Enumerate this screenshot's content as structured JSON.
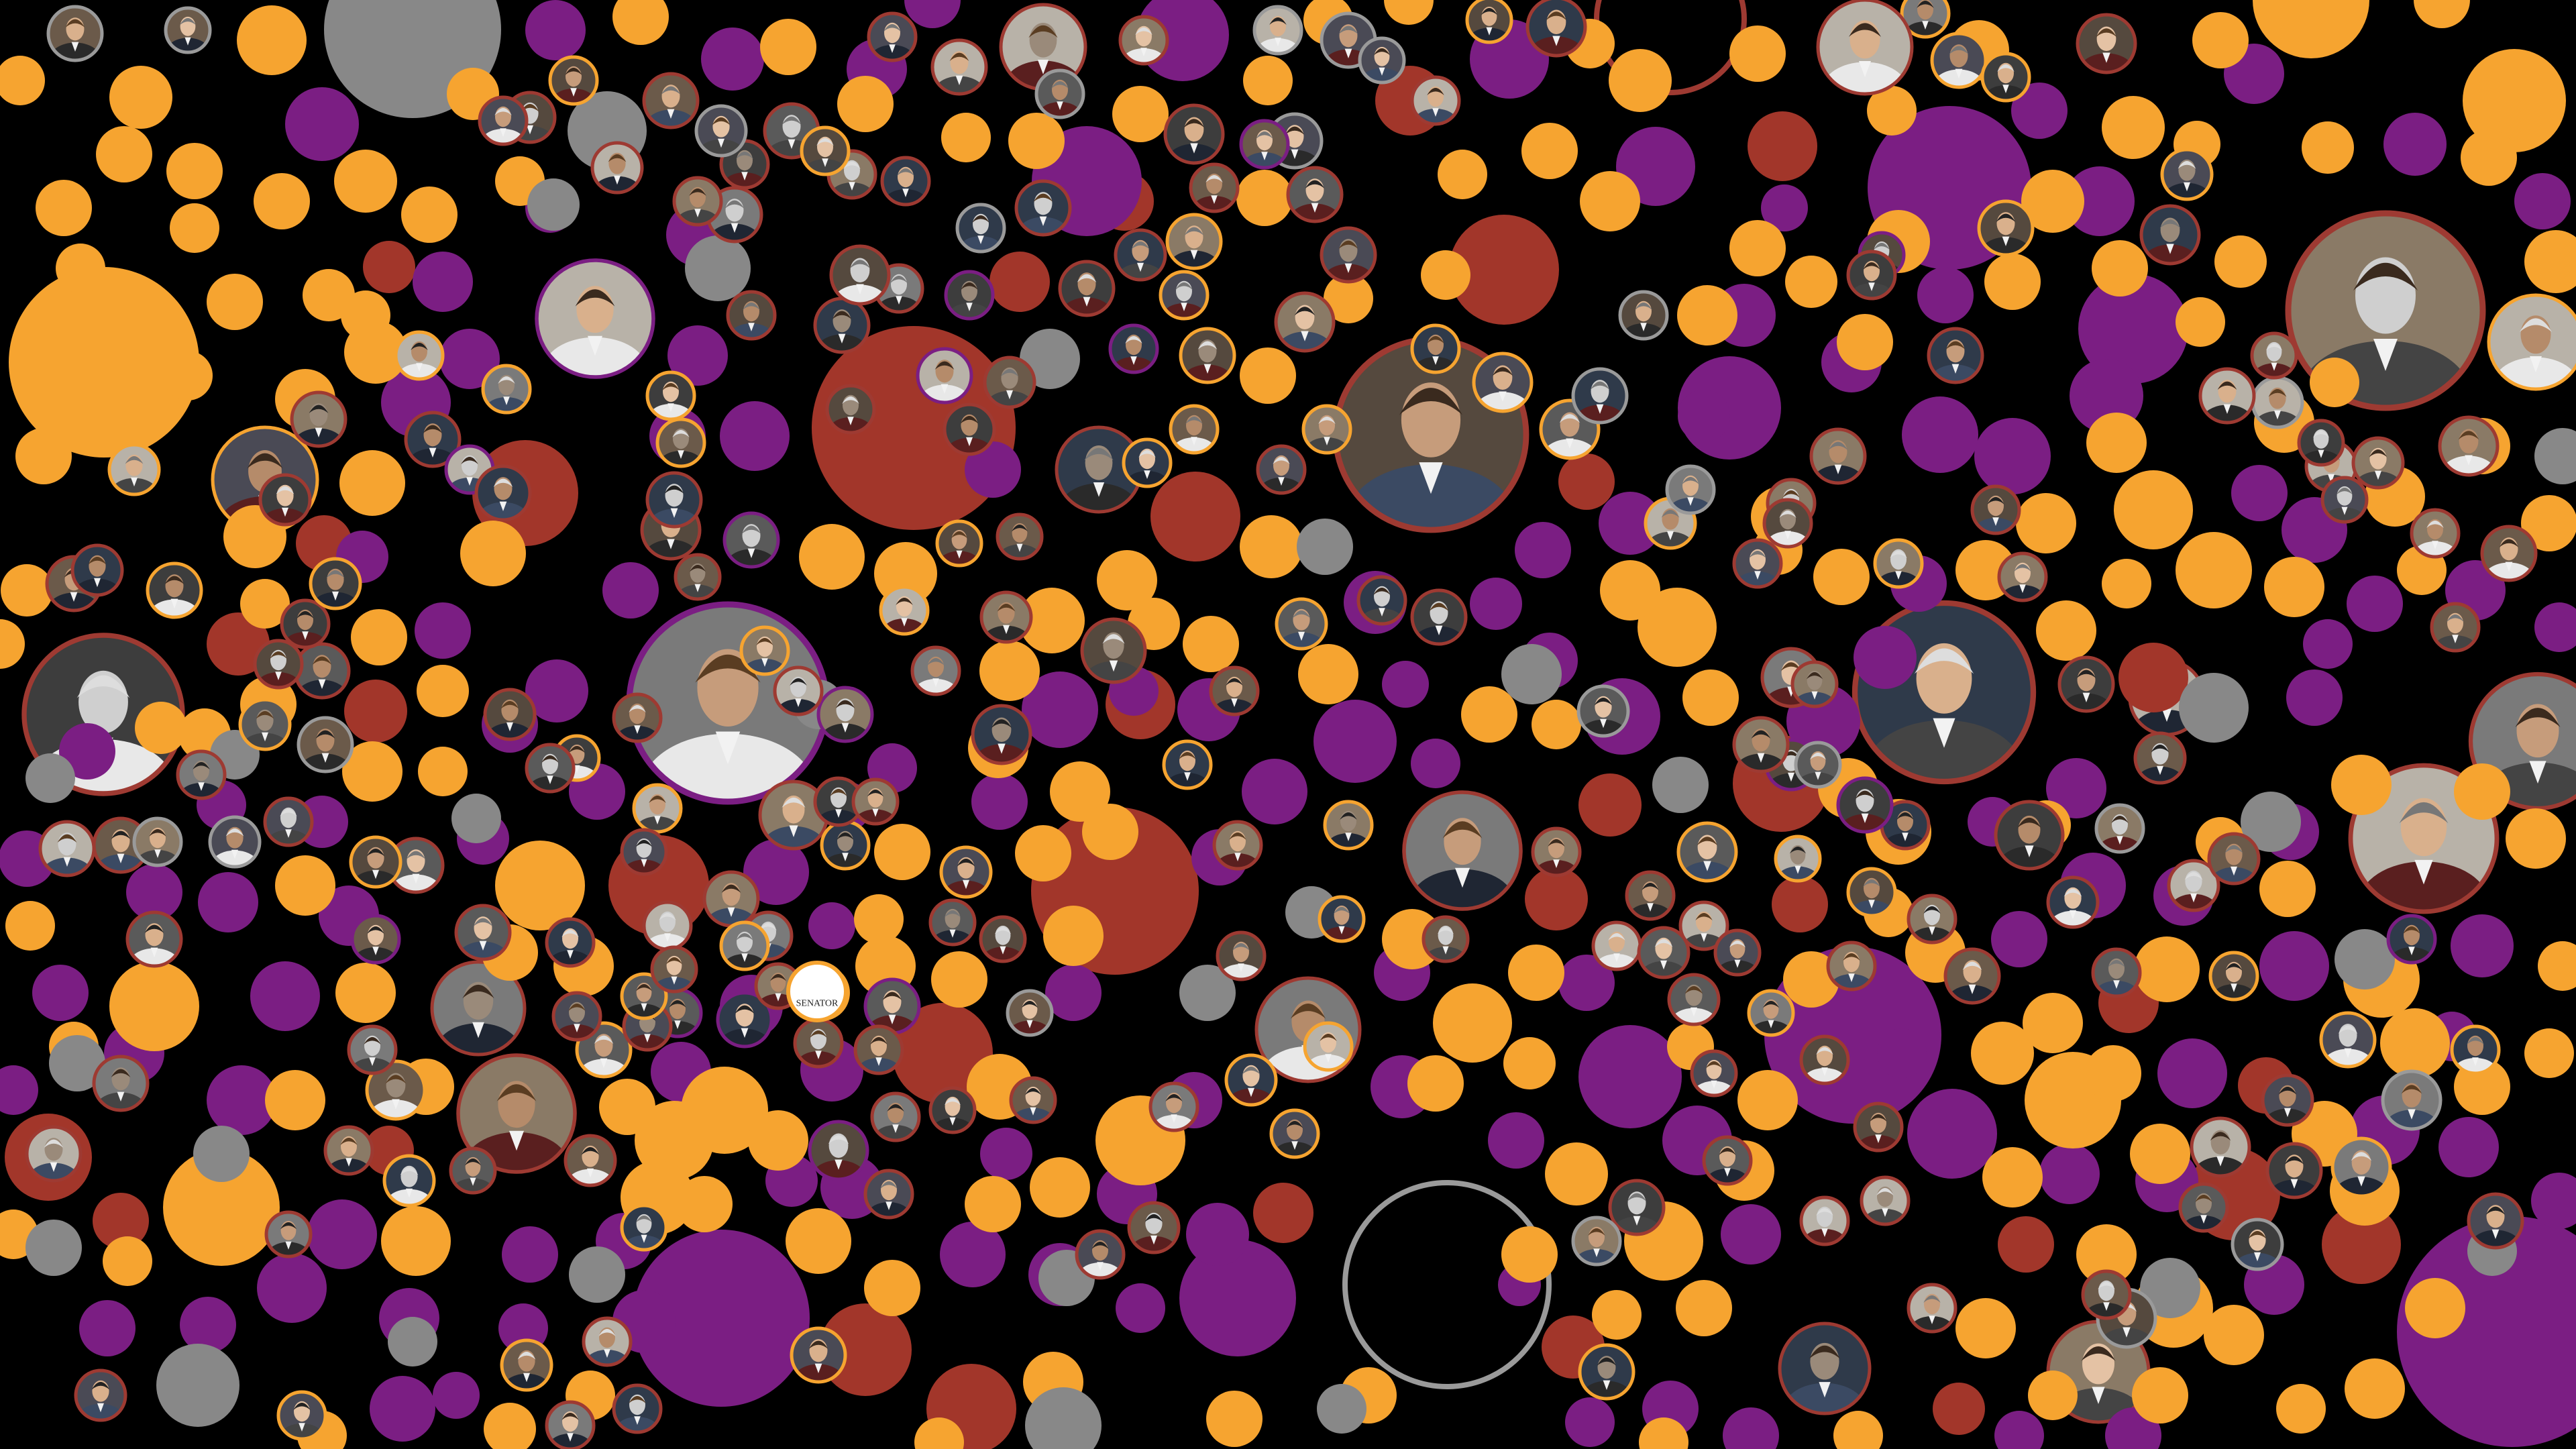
{
  "palette": {
    "background": "#000000",
    "orange": "#F6A430",
    "purple": "#7B1E83",
    "red": "#A2362A",
    "gray": "#888888",
    "ring_red": "#9E3A32",
    "ring_orange": "#F6A430",
    "ring_purple": "#7B1E83",
    "ring_gray": "#9A9A9A",
    "photo_fill": "#3A3A3A"
  },
  "bubble_kinds": [
    "orange",
    "purple",
    "red",
    "gray",
    "photo-portrait",
    "empty-ring"
  ],
  "featured_portraits": [
    {
      "name": "eisenhower-portrait",
      "ring": "ring_red"
    },
    {
      "name": "clinton-portrait",
      "ring": "ring_red"
    },
    {
      "name": "gore-portrait",
      "ring": "ring_red"
    },
    {
      "name": "kennedy-portrait",
      "ring": "ring_red"
    },
    {
      "name": "romney-portrait",
      "ring": "ring_red"
    },
    {
      "name": "monroe-portrait",
      "ring": "ring_red"
    },
    {
      "name": "truman-portrait",
      "ring": "ring_red"
    },
    {
      "name": "seated-woman-portrait",
      "ring": "ring_purple"
    }
  ],
  "stamp_text": "SENATOR"
}
